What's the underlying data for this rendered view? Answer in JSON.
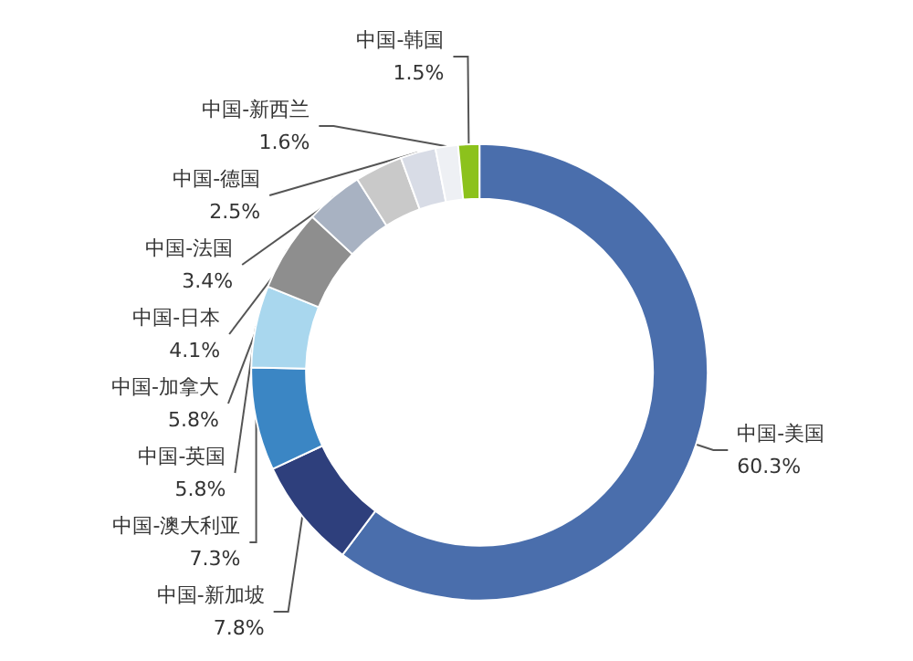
{
  "chart_data": {
    "type": "donut",
    "categories": [
      "中国-美国",
      "中国-新加坡",
      "中国-澳大利亚",
      "中国-英国",
      "中国-加拿大",
      "中国-日本",
      "中国-法国",
      "中国-德国",
      "中国-新西兰",
      "中国-韩国"
    ],
    "values": [
      60.3,
      7.8,
      7.3,
      5.8,
      5.8,
      4.1,
      3.4,
      2.5,
      1.6,
      1.5
    ],
    "colors": [
      "#4a6eac",
      "#2e3f7c",
      "#3b86c4",
      "#a9d7ee",
      "#8e8e8e",
      "#a8b2c2",
      "#c9c9c9",
      "#d8dce6",
      "#eef0f4",
      "#8cc21c"
    ],
    "value_labels": [
      "60.3%",
      "7.8%",
      "7.3%",
      "5.8%",
      "5.8%",
      "4.1%",
      "3.4%",
      "2.5%",
      "1.6%",
      "1.5%"
    ],
    "legend": false
  }
}
